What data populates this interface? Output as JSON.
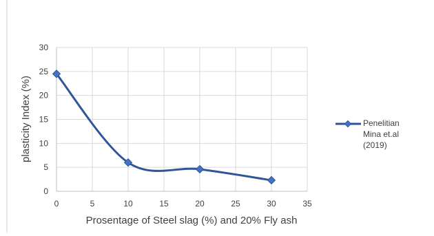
{
  "chart_data": {
    "type": "line",
    "title": "",
    "xlabel": "Prosentage of Steel slag (%) and 20% Fly ash",
    "ylabel": "plasticity Index  (%)",
    "xlim": [
      0,
      35
    ],
    "ylim": [
      0,
      30
    ],
    "x_ticks": [
      "0",
      "5",
      "10",
      "15",
      "20",
      "25",
      "30",
      "35"
    ],
    "y_ticks": [
      "0",
      "5",
      "10",
      "15",
      "20",
      "25",
      "30"
    ],
    "grid": "vertical and horizontal",
    "smoothed": true,
    "legend_position": "right",
    "series": [
      {
        "name": "Penelitian Mina et.al (2019)",
        "color": "#2f5597",
        "marker": "diamond",
        "x": [
          0,
          10,
          20,
          30
        ],
        "y": [
          24.5,
          6.0,
          4.6,
          2.3
        ]
      }
    ],
    "legend_lines": [
      "Penelitian",
      "Mina et.al",
      "(2019)"
    ]
  }
}
